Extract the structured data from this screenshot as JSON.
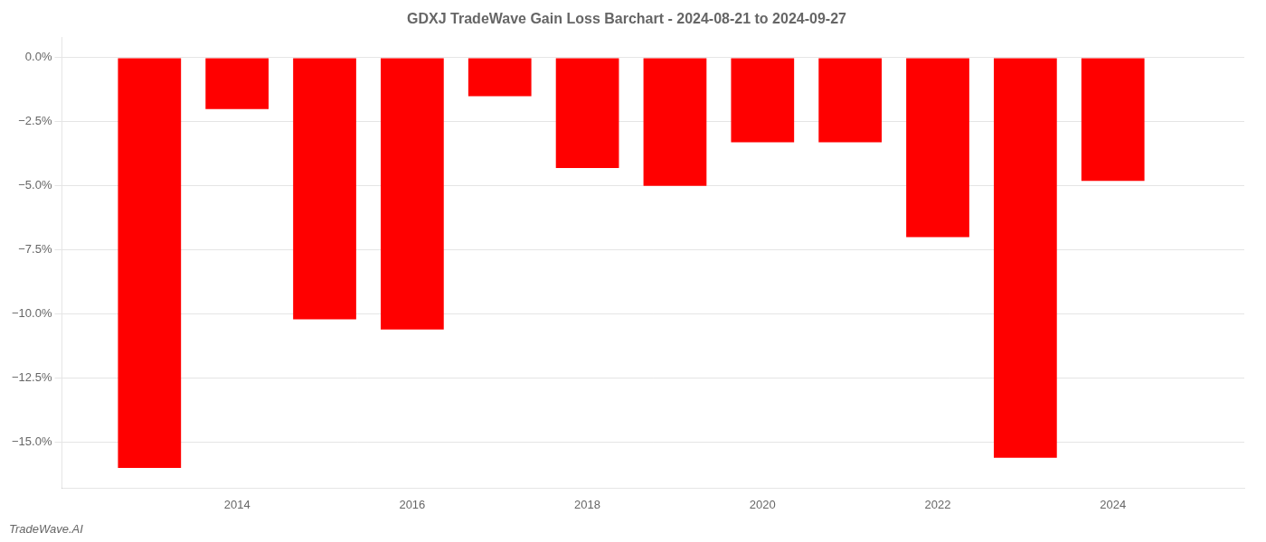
{
  "chart_data": {
    "type": "bar",
    "title": "GDXJ TradeWave Gain Loss Barchart - 2024-08-21 to 2024-09-27",
    "annotations": [
      "TradeWave.AI"
    ],
    "x": [
      2013,
      2014,
      2015,
      2016,
      2017,
      2018,
      2019,
      2020,
      2021,
      2022,
      2023,
      2024
    ],
    "values": [
      -16.0,
      -2.0,
      -10.2,
      -10.6,
      -1.5,
      -4.3,
      -5.0,
      -3.3,
      -3.3,
      -7.0,
      -15.6,
      -4.8
    ],
    "color": "#ff0000",
    "xlim": [
      2012.0,
      2025.5
    ],
    "xticks": [
      2014,
      2016,
      2018,
      2020,
      2022,
      2024
    ],
    "ylim": [
      -16.8,
      0.8
    ],
    "yticks": [
      {
        "value": 0.0,
        "label": "0.0%"
      },
      {
        "value": -2.5,
        "label": "−2.5%"
      },
      {
        "value": -5.0,
        "label": "−5.0%"
      },
      {
        "value": -7.5,
        "label": "−7.5%"
      },
      {
        "value": -10.0,
        "label": "−10.0%"
      },
      {
        "value": -12.5,
        "label": "−12.5%"
      },
      {
        "value": -15.0,
        "label": "−15.0%"
      }
    ],
    "grid": true
  }
}
